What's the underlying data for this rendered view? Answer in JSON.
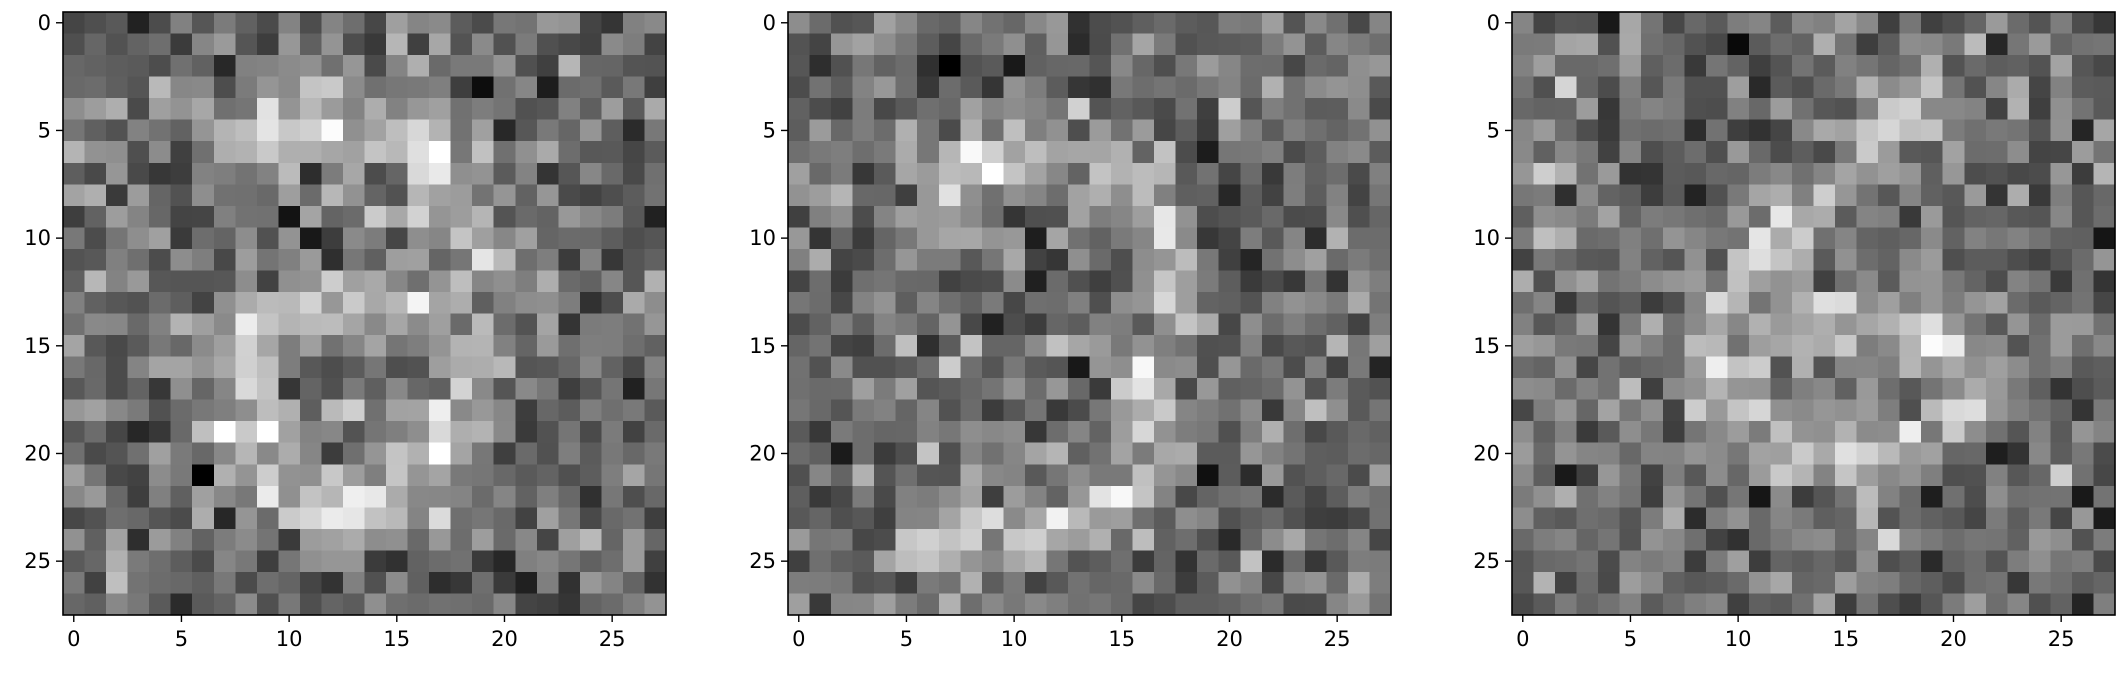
{
  "chart_data": [
    {
      "type": "heatmap",
      "colormap": "gray",
      "grid": false,
      "size": [
        28,
        28
      ],
      "description_of_values": "pixel intensities of a noisy grayscale 28x28 image showing a faint digit-like stroke",
      "x_ticks": [
        "0",
        "5",
        "10",
        "15",
        "20",
        "25"
      ],
      "y_ticks": [
        "0",
        "5",
        "10",
        "15",
        "20",
        "25"
      ],
      "xlim": [
        -0.5,
        27.5
      ],
      "ylim": [
        27.5,
        -0.5
      ],
      "seed": 11,
      "strokes": [
        [
          [
            8,
            5
          ],
          [
            12,
            4
          ],
          [
            15,
            5
          ],
          [
            17,
            6
          ],
          [
            18,
            8
          ],
          [
            19,
            10
          ],
          [
            19,
            12
          ],
          [
            16,
            13
          ],
          [
            12,
            13
          ],
          [
            9,
            14
          ],
          [
            8,
            16
          ],
          [
            8,
            19
          ],
          [
            9,
            21
          ],
          [
            12,
            23
          ],
          [
            15,
            22
          ],
          [
            17,
            20
          ],
          [
            18,
            17
          ],
          [
            18,
            14
          ]
        ]
      ]
    },
    {
      "type": "heatmap",
      "colormap": "gray",
      "grid": false,
      "size": [
        28,
        28
      ],
      "x_ticks": [
        "0",
        "5",
        "10",
        "15",
        "20",
        "25"
      ],
      "y_ticks": [
        "0",
        "5",
        "10",
        "15",
        "20",
        "25"
      ],
      "xlim": [
        -0.5,
        27.5
      ],
      "ylim": [
        27.5,
        -0.5
      ],
      "seed": 29,
      "strokes": [
        [
          [
            6,
            9
          ],
          [
            8,
            7
          ],
          [
            11,
            6
          ],
          [
            14,
            6
          ],
          [
            16,
            8
          ],
          [
            17,
            11
          ],
          [
            17,
            14
          ],
          [
            16,
            17
          ],
          [
            17,
            20
          ],
          [
            15,
            22
          ],
          [
            12,
            23
          ],
          [
            9,
            24
          ],
          [
            7,
            24
          ]
        ]
      ]
    },
    {
      "type": "heatmap",
      "colormap": "gray",
      "grid": false,
      "size": [
        28,
        28
      ],
      "x_ticks": [
        "0",
        "5",
        "10",
        "15",
        "20",
        "25"
      ],
      "y_ticks": [
        "0",
        "5",
        "10",
        "15",
        "20",
        "25"
      ],
      "xlim": [
        -0.5,
        27.5
      ],
      "ylim": [
        27.5,
        -0.5
      ],
      "seed": 47,
      "strokes": [
        [
          [
            19,
            3
          ],
          [
            16,
            6
          ],
          [
            14,
            8
          ],
          [
            12,
            10
          ],
          [
            10,
            12
          ],
          [
            9,
            15
          ],
          [
            10,
            18
          ],
          [
            13,
            20
          ],
          [
            16,
            20
          ],
          [
            19,
            19
          ],
          [
            21,
            17
          ],
          [
            20,
            15
          ],
          [
            17,
            14
          ],
          [
            13,
            14
          ],
          [
            10,
            15
          ]
        ]
      ]
    }
  ]
}
